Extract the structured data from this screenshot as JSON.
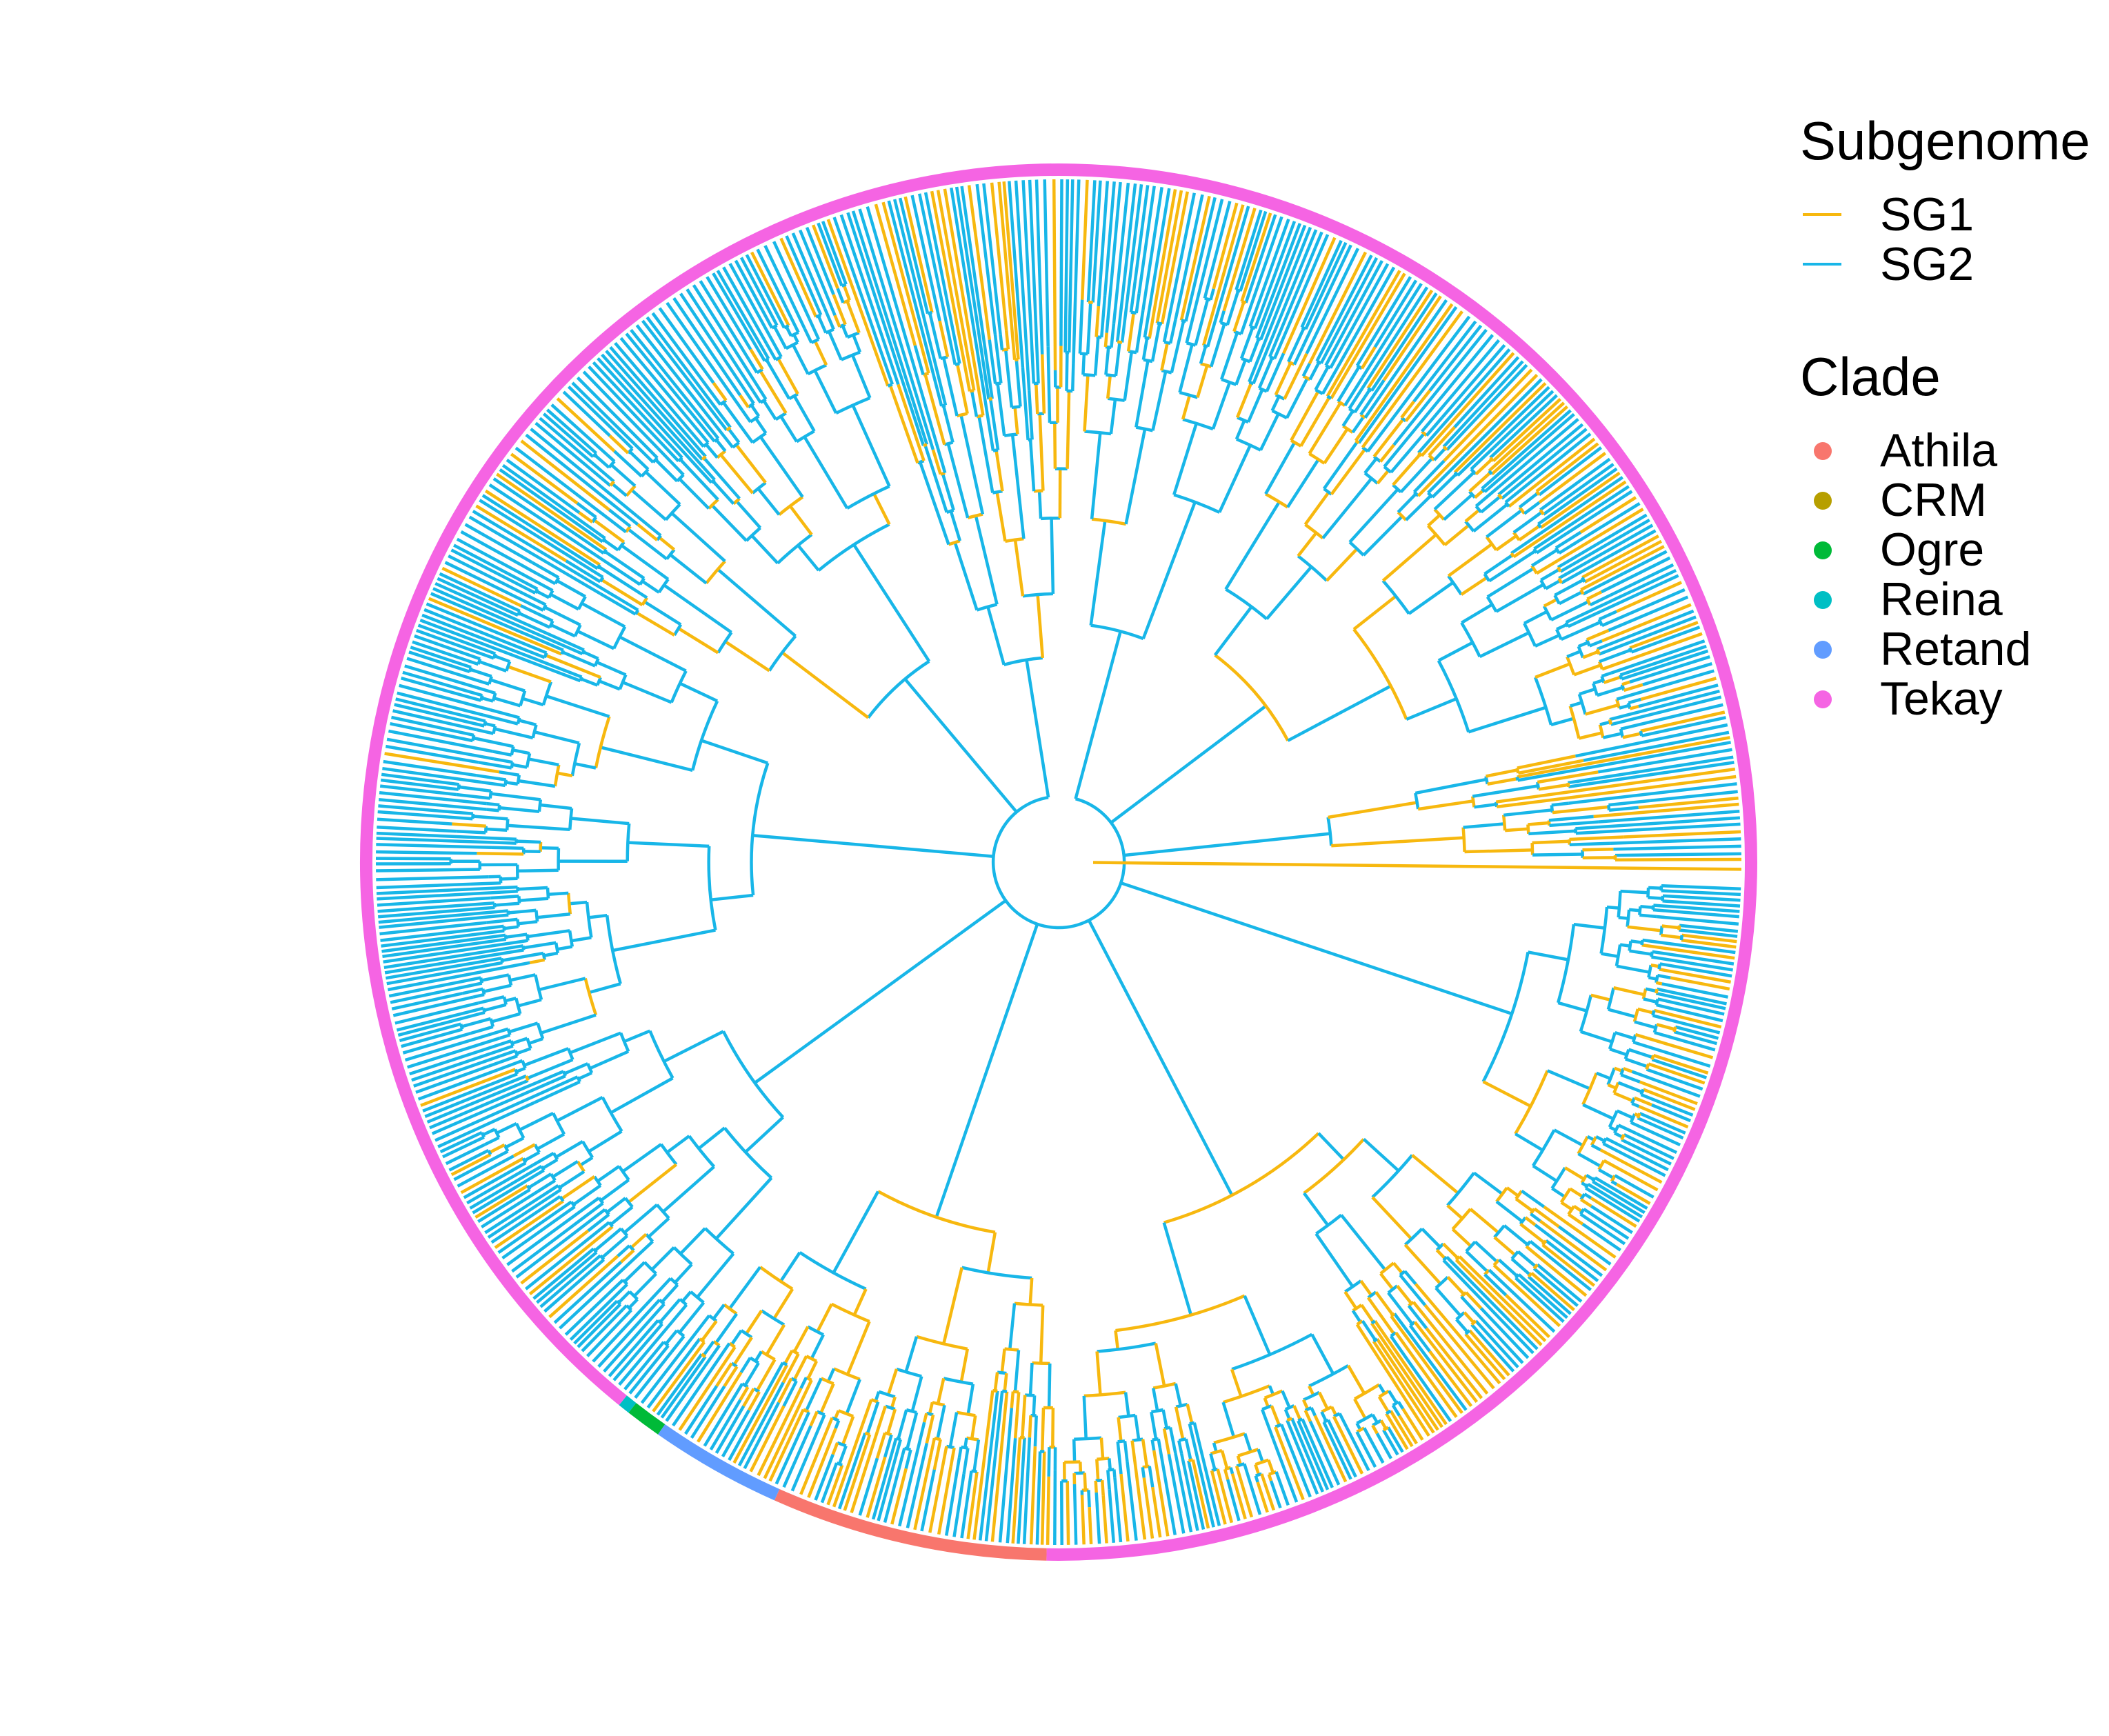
{
  "legend": {
    "subgenome": {
      "title": "Subgenome",
      "items": [
        {
          "label": "SG1",
          "color": "#F7B80F"
        },
        {
          "label": "SG2",
          "color": "#18B6E8"
        }
      ]
    },
    "clade": {
      "title": "Clade",
      "items": [
        {
          "label": "Athila",
          "color": "#F8766D"
        },
        {
          "label": "CRM",
          "color": "#B79F00"
        },
        {
          "label": "Ogre",
          "color": "#00BA38"
        },
        {
          "label": "Reina",
          "color": "#00BFC4"
        },
        {
          "label": "Retand",
          "color": "#619CFF"
        },
        {
          "label": "Tekay",
          "color": "#F564E3"
        }
      ]
    }
  },
  "tree": {
    "layout": "circular",
    "clade_ring": [
      {
        "clade": "Tekay",
        "from_deg": 0,
        "to_deg": 91
      },
      {
        "clade": "Athila",
        "from_deg": 91,
        "to_deg": 114
      },
      {
        "clade": "Retand",
        "from_deg": 114,
        "to_deg": 125
      },
      {
        "clade": "Ogre",
        "from_deg": 125,
        "to_deg": 128
      },
      {
        "clade": "Reina",
        "from_deg": 128,
        "to_deg": 129
      },
      {
        "clade": "Tekay",
        "from_deg": 129,
        "to_deg": 360
      }
    ],
    "branch_sectors": [
      {
        "from_deg": -88,
        "to_deg": -62,
        "sg1_share": 0.25,
        "depth_min": 0.35,
        "depth_max": 0.97
      },
      {
        "from_deg": -62,
        "to_deg": -12,
        "sg1_share": 0.35,
        "depth_min": 0.38,
        "depth_max": 0.97
      },
      {
        "from_deg": -12,
        "to_deg": 0,
        "sg1_share": 0.55,
        "depth_min": 0.4,
        "depth_max": 0.97
      },
      {
        "from_deg": 2,
        "to_deg": 35,
        "sg1_share": 0.3,
        "depth_min": 0.7,
        "depth_max": 0.97
      },
      {
        "from_deg": 35,
        "to_deg": 90,
        "sg1_share": 0.45,
        "depth_min": 0.55,
        "depth_max": 0.97
      },
      {
        "from_deg": 90,
        "to_deg": 128,
        "sg1_share": 0.5,
        "depth_min": 0.55,
        "depth_max": 0.97
      },
      {
        "from_deg": 128,
        "to_deg": 160,
        "sg1_share": 0.1,
        "depth_min": 0.55,
        "depth_max": 0.97
      },
      {
        "from_deg": 160,
        "to_deg": 210,
        "sg1_share": 0.05,
        "depth_min": 0.45,
        "depth_max": 0.97
      },
      {
        "from_deg": 210,
        "to_deg": 250,
        "sg1_share": 0.2,
        "depth_min": 0.35,
        "depth_max": 0.97
      },
      {
        "from_deg": 250,
        "to_deg": 272,
        "sg1_share": 0.3,
        "depth_min": 0.3,
        "depth_max": 0.97
      }
    ]
  }
}
